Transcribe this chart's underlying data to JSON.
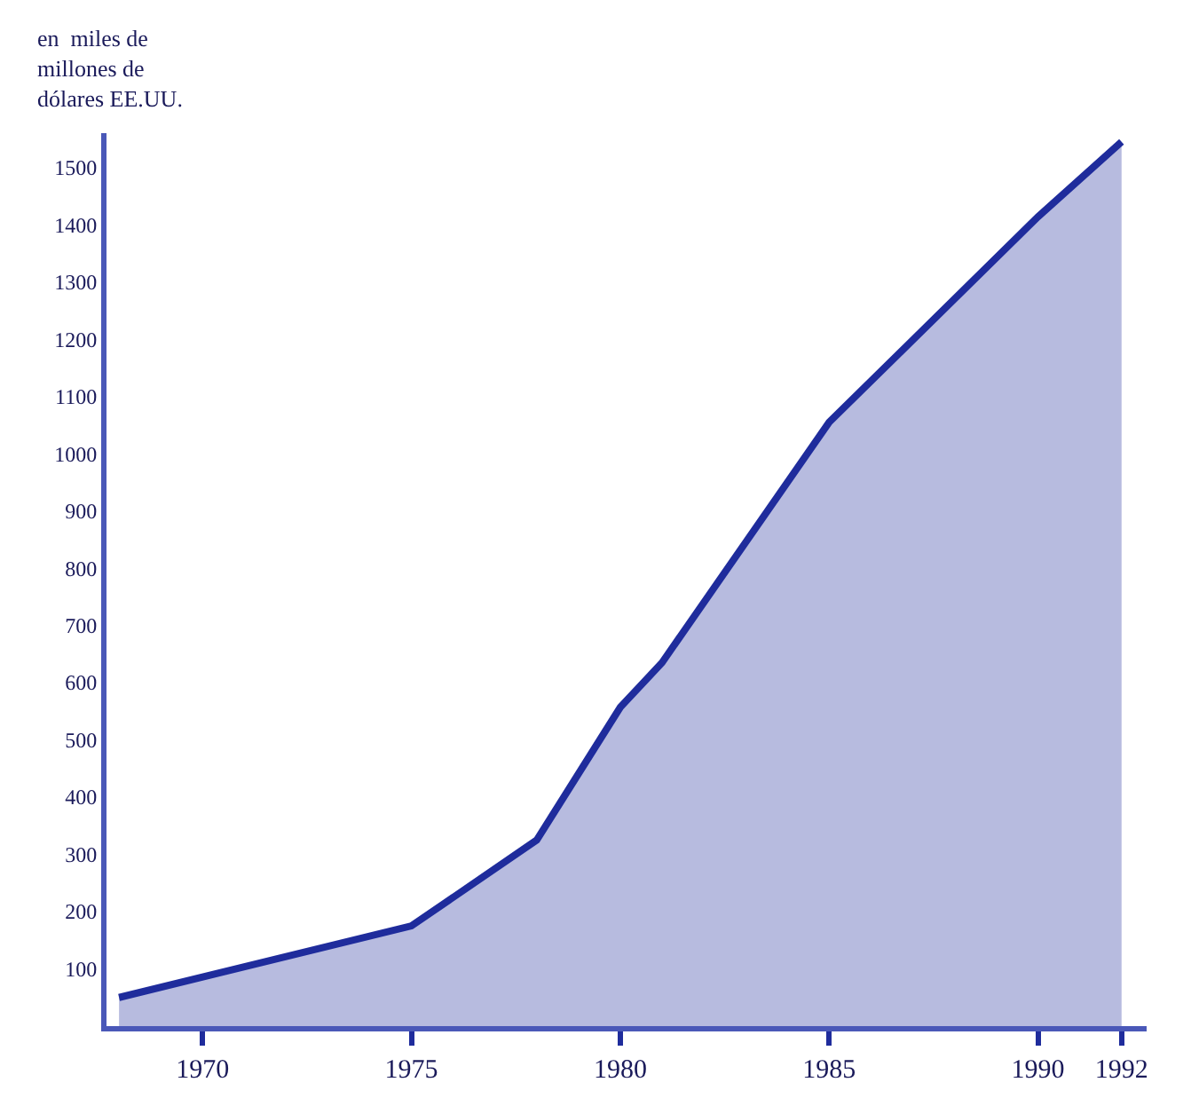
{
  "chart_data": {
    "type": "area",
    "ylabel": "en  miles de\nmillones de\ndólares EE.UU.",
    "x": [
      1968,
      1975,
      1978,
      1980,
      1981,
      1985,
      1990,
      1992
    ],
    "series": [
      {
        "color": "#1f2c9c",
        "values": [
          50,
          175,
          325,
          557,
          635,
          1055,
          1414,
          1545
        ]
      }
    ],
    "xlim": [
      1967.7,
      1992.6
    ],
    "xticks": [
      1970,
      1975,
      1980,
      1985,
      1990,
      1992
    ],
    "ylim": [
      0,
      1560
    ],
    "yticks": [
      100,
      200,
      300,
      400,
      500,
      600,
      700,
      800,
      900,
      1000,
      1100,
      1200,
      1300,
      1400,
      1500
    ]
  }
}
